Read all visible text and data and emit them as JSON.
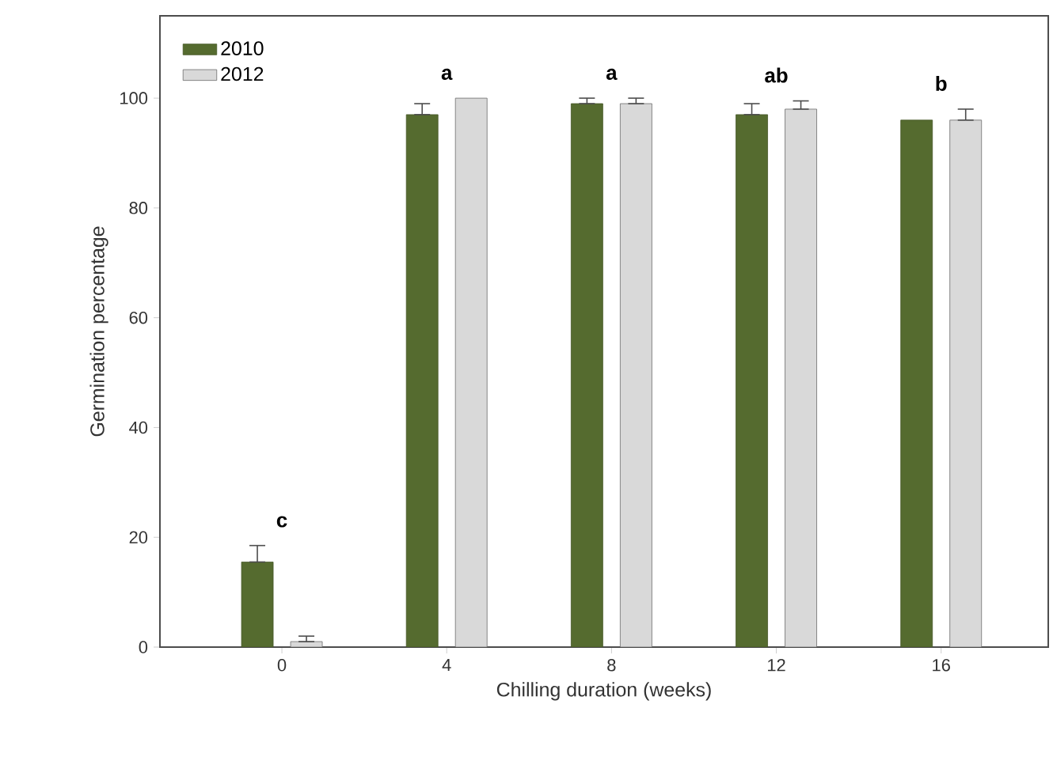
{
  "chart_data": {
    "type": "bar",
    "xlabel": "Chilling duration (weeks)",
    "ylabel": "Germination percentage",
    "categories": [
      "0",
      "4",
      "8",
      "12",
      "16"
    ],
    "series": [
      {
        "name": "2010",
        "color": "#556b2f",
        "values": [
          15.5,
          97,
          99,
          97,
          96
        ],
        "errors": [
          [
            15.5,
            18.5
          ],
          [
            97,
            99
          ],
          [
            99,
            100
          ],
          [
            97,
            99
          ],
          null
        ]
      },
      {
        "name": "2012",
        "color": "#d9d9d9",
        "values": [
          1,
          100,
          99,
          98,
          96
        ],
        "errors": [
          [
            1,
            2
          ],
          null,
          [
            99,
            100
          ],
          [
            98,
            99.5
          ],
          [
            96,
            98
          ]
        ]
      }
    ],
    "ylim": [
      0,
      115
    ],
    "yticks": [
      0,
      20,
      40,
      60,
      80,
      100
    ],
    "legend": "top left",
    "grid": false,
    "annotations": [
      "c",
      "a",
      "a",
      "ab",
      "b"
    ]
  }
}
